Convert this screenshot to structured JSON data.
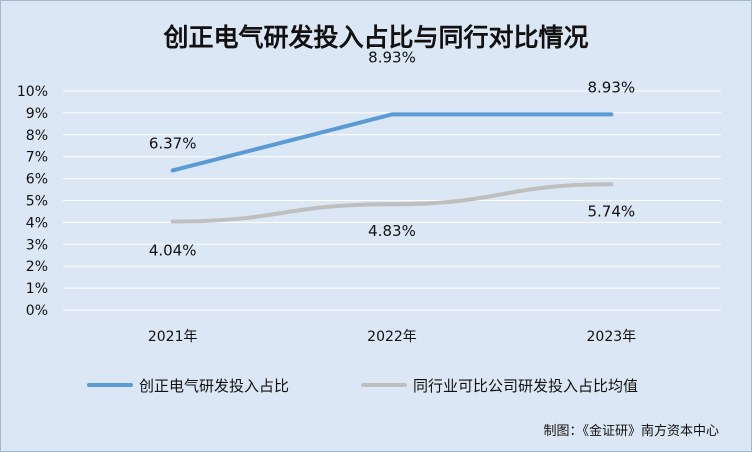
{
  "chart_data": {
    "type": "line",
    "title": "创正电气研发投入占比与同行对比情况",
    "categories": [
      "2021年",
      "2022年",
      "2023年"
    ],
    "series": [
      {
        "name": "创正电气研发投入占比",
        "values": [
          6.37,
          8.93,
          8.93
        ],
        "labels": [
          "6.37%",
          "8.93%",
          "8.93%"
        ],
        "color": "#5b9bd5"
      },
      {
        "name": "同行业可比公司研发投入占比均值",
        "values": [
          4.04,
          4.83,
          5.74
        ],
        "labels": [
          "4.04%",
          "4.83%",
          "5.74%"
        ],
        "color": "#bfbfbf"
      }
    ],
    "y_ticks": [
      "0%",
      "1%",
      "2%",
      "3%",
      "4%",
      "5%",
      "6%",
      "7%",
      "8%",
      "9%",
      "10%"
    ],
    "ylim": [
      0,
      10
    ],
    "grid": true,
    "legend_position": "bottom",
    "xlabel": "",
    "ylabel": ""
  },
  "credit": "制图：《金证研》南方资本中心",
  "colors": {
    "background": "#dbe7f4",
    "gridline": "#ffffff",
    "text": "#111111"
  }
}
